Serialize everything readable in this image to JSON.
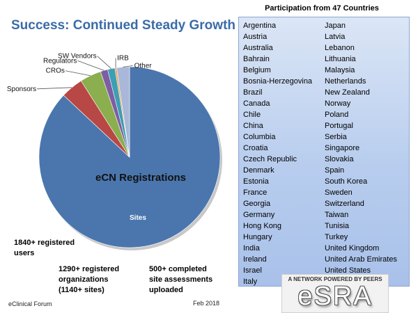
{
  "title": "Success: Continued Steady Growth",
  "chart_data": {
    "type": "pie",
    "title": "Success: Continued Steady Growth",
    "center_label": "eCN Registrations",
    "slices": [
      {
        "label": "Sites",
        "value": 87.0,
        "color": "#4a76ad",
        "label_inside": true
      },
      {
        "label": "Sponsors",
        "value": 4.0,
        "color": "#b84845"
      },
      {
        "label": "CROs",
        "value": 3.8,
        "color": "#8bae4f"
      },
      {
        "label": "Regulators",
        "value": 1.3,
        "color": "#7d5ea3"
      },
      {
        "label": "SW Vendors",
        "value": 1.3,
        "color": "#3c9fb4"
      },
      {
        "label": "IRB",
        "value": 0.3,
        "color": "#f09a3d"
      },
      {
        "label": "Other",
        "value": 2.3,
        "color": "#a9b8d9"
      }
    ]
  },
  "stats": {
    "users": [
      "1840+ registered",
      "users"
    ],
    "orgs": [
      "1290+ registered",
      "organizations",
      "(1140+ sites)"
    ],
    "assessments": [
      "500+ completed",
      "site assessments",
      "uploaded"
    ]
  },
  "footer": {
    "left": "eClinical Forum",
    "date": "Feb 2018"
  },
  "participation": {
    "title": "Participation  from 47 Countries",
    "col1": [
      "Argentina",
      "Austria",
      "Australia",
      "Bahrain",
      "Belgium",
      "Bosnia-Herzegovina",
      "Brazil",
      "Canada",
      "Chile",
      "China",
      "Columbia",
      "Croatia",
      "Czech Republic",
      "Denmark",
      "Estonia",
      "France",
      "Georgia",
      "Germany",
      "Hong Kong",
      "Hungary",
      "India",
      "Ireland",
      "Israel",
      "Italy"
    ],
    "col2": [
      "Japan",
      "Latvia",
      "Lebanon",
      "Lithuania",
      "Malaysia",
      "Netherlands",
      "New Zealand",
      "Norway",
      "Poland",
      "Portugal",
      "Serbia",
      "Singapore",
      "Slovakia",
      "Spain",
      "South Korea",
      "Sweden",
      "Switzerland",
      "Taiwan",
      "Tunisia",
      "Turkey",
      "United Kingdom",
      "United Arab Emirates",
      "United States"
    ]
  },
  "esra": {
    "tagline": "A NETWORK POWERED BY PEERS",
    "logo": "eSRA"
  }
}
